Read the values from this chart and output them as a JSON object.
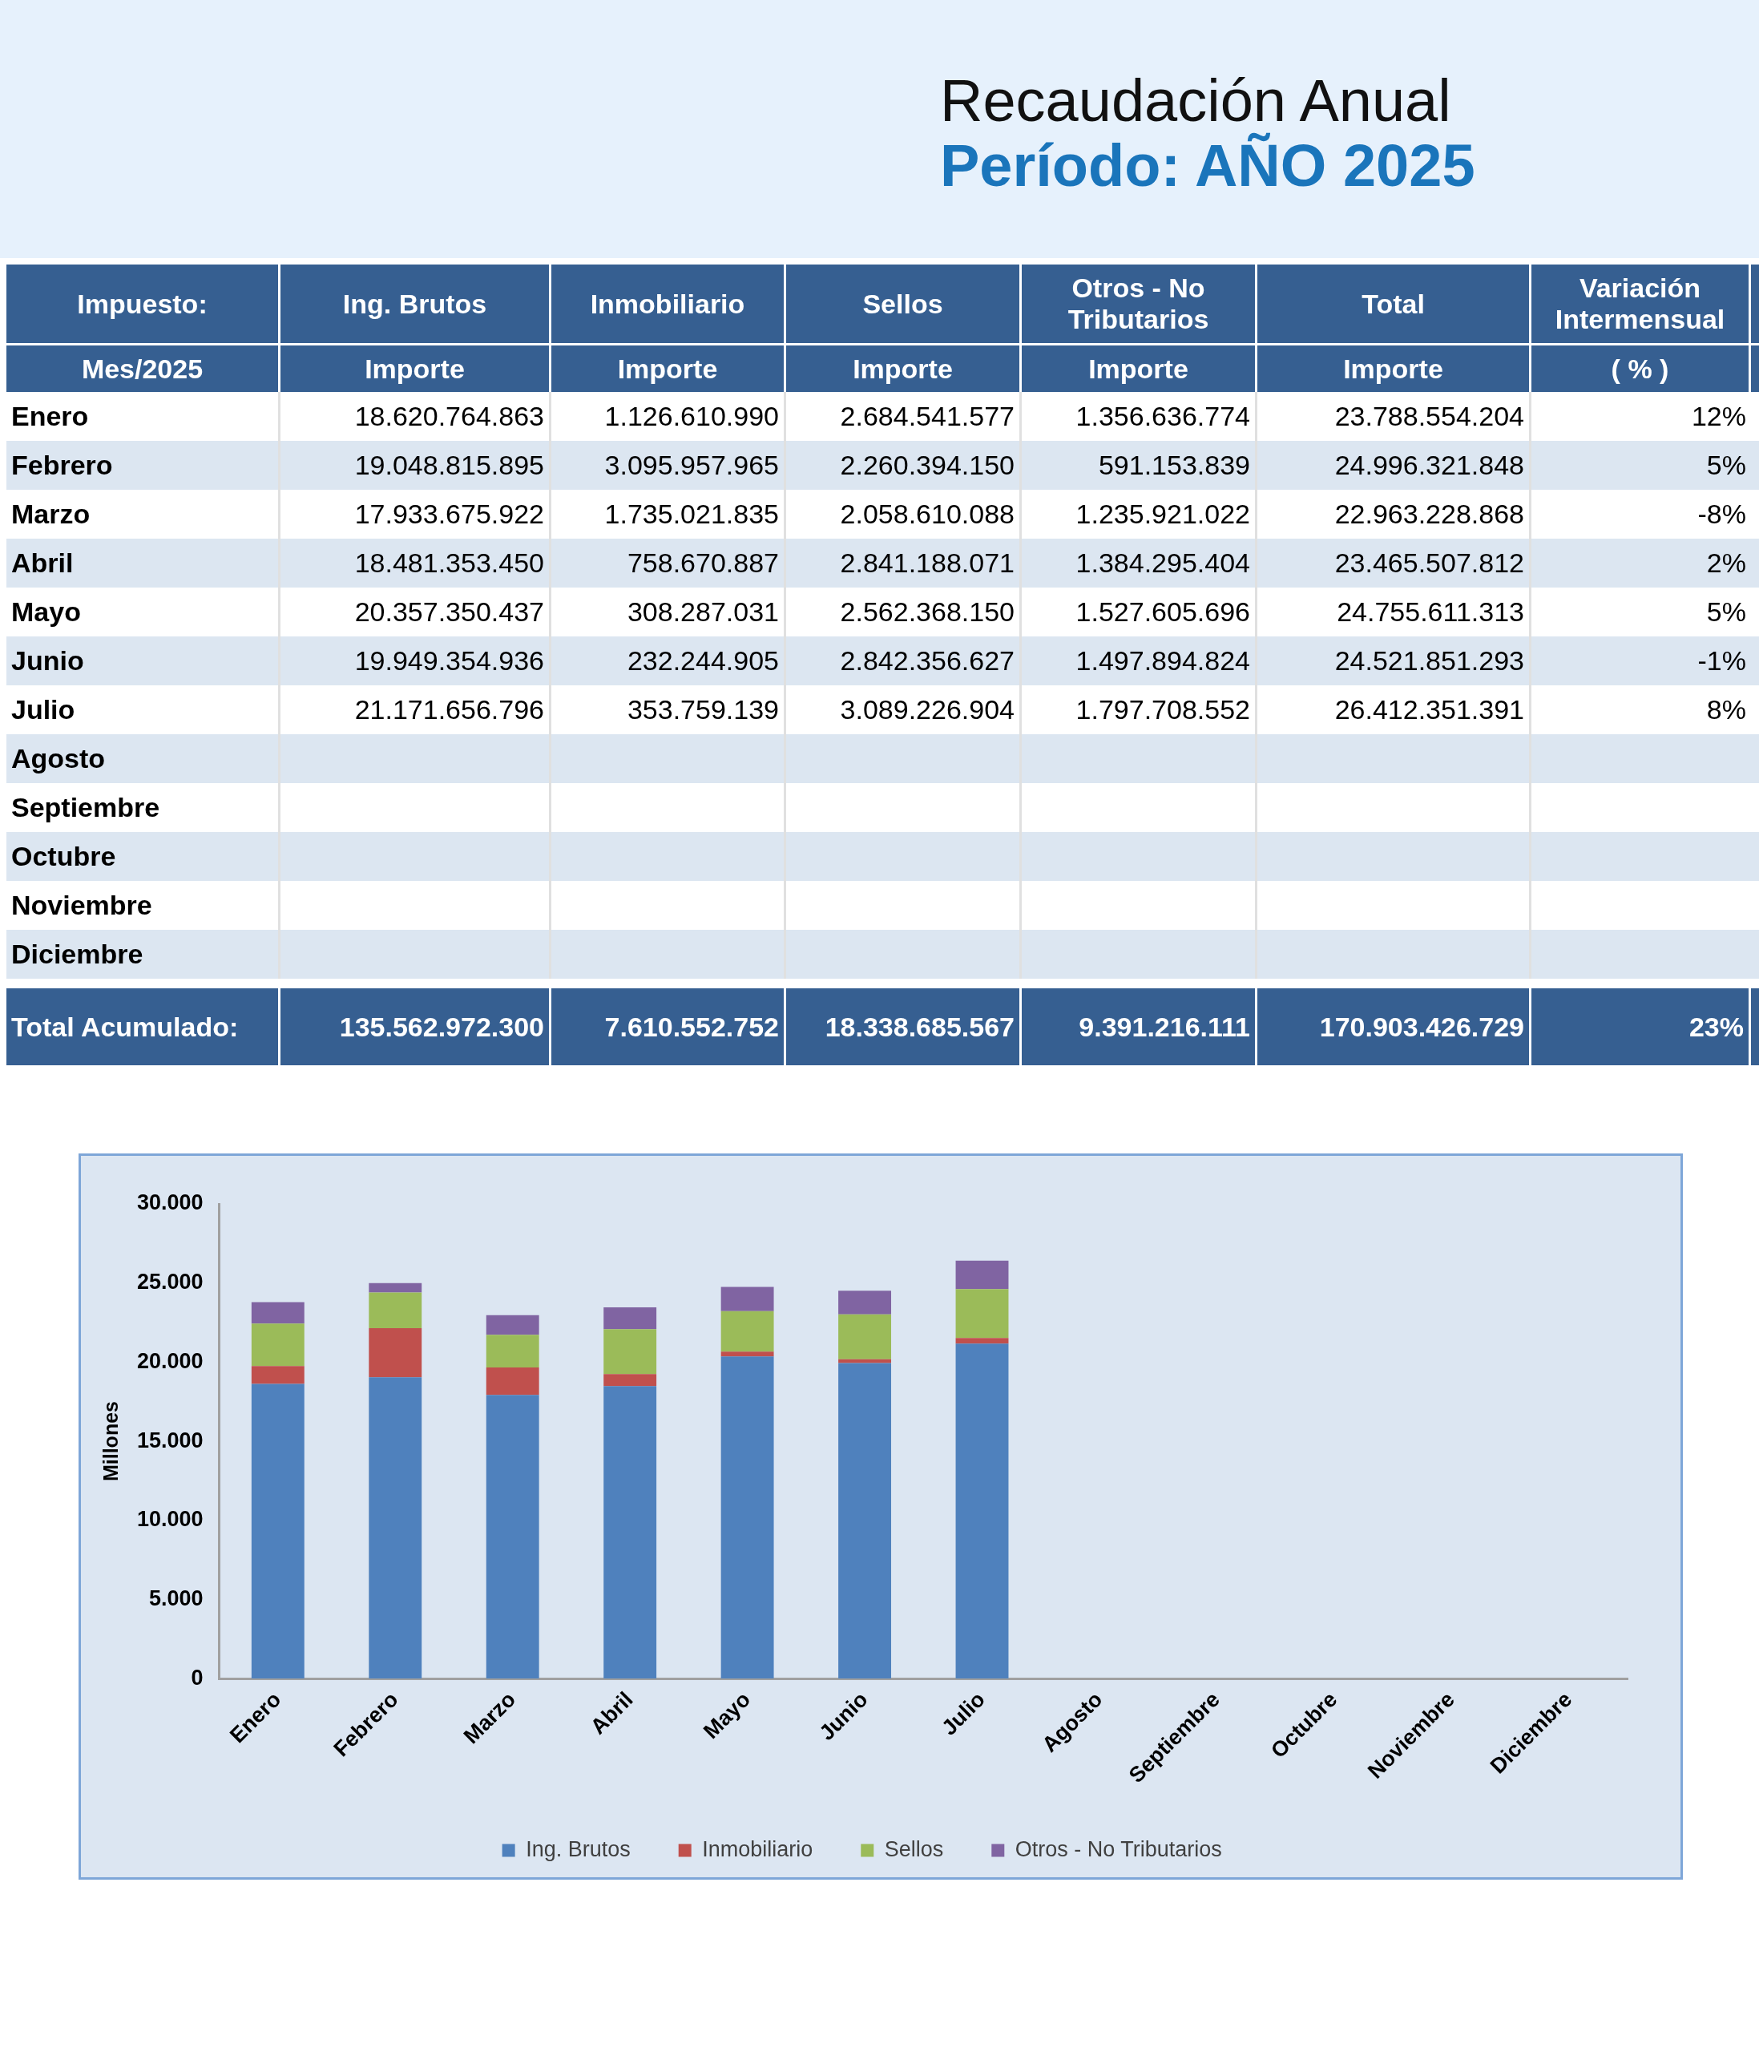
{
  "chart_data": [
    {
      "type": "other",
      "title": "Recaudación Anual",
      "subtitle": "Período: AÑO 2025",
      "annotations": [
        "Impuesto:",
        "Ing. Brutos",
        "Inmobiliario",
        "Sellos",
        "Otros - No Tributarios",
        "Total",
        "Variación Intermensual",
        "Mes/2025",
        "Importe",
        "Importe",
        "Importe",
        "Importe",
        "Importe",
        "( % )",
        "Enero",
        "18.620.764.863",
        "1.126.610.990",
        "2.684.541.577",
        "1.356.636.774",
        "23.788.554.204",
        "12%",
        "Febrero",
        "19.048.815.895",
        "3.095.957.965",
        "2.260.394.150",
        "591.153.839",
        "24.996.321.848",
        "5%",
        "Marzo",
        "17.933.675.922",
        "1.735.021.835",
        "2.058.610.088",
        "1.235.921.022",
        "22.963.228.868",
        "-8%",
        "Abril",
        "18.481.353.450",
        "758.670.887",
        "2.841.188.071",
        "1.384.295.404",
        "23.465.507.812",
        "2%",
        "Mayo",
        "20.357.350.437",
        "308.287.031",
        "2.562.368.150",
        "1.527.605.696",
        "24.755.611.313",
        "5%",
        "Junio",
        "19.949.354.936",
        "232.244.905",
        "2.842.356.627",
        "1.497.894.824",
        "24.521.851.293",
        "-1%",
        "Julio",
        "21.171.656.796",
        "353.759.139",
        "3.089.226.904",
        "1.797.708.552",
        "26.412.351.391",
        "8%",
        "Agosto",
        null,
        null,
        null,
        null,
        null,
        null,
        "Septiembre",
        null,
        null,
        null,
        null,
        null,
        null,
        "Octubre",
        null,
        null,
        null,
        null,
        null,
        null,
        "Noviembre",
        null,
        null,
        null,
        null,
        null,
        null,
        "Diciembre",
        null,
        null,
        null,
        null,
        null,
        null,
        "Total Acumulado:",
        "135.562.972.300",
        "7.610.552.752",
        "18.338.685.567",
        "9.391.216.111",
        "170.903.426.729",
        "23%"
      ]
    },
    {
      "type": "bar",
      "ylabel": "Millones",
      "categories": [
        "Enero",
        "Febrero",
        "Marzo",
        "Abril",
        "Mayo",
        "Junio",
        "Julio",
        "Agosto",
        "Septiembre",
        "Octubre",
        "Noviembre",
        "Diciembre"
      ],
      "series": [
        {
          "name": "Ing. Brutos",
          "color": "#4f81bd",
          "values": [
            18621,
            19049,
            17934,
            18481,
            20357,
            19949,
            21172,
            null,
            null,
            null,
            null,
            null
          ]
        },
        {
          "name": "Inmobiliario",
          "color": "#c0504d",
          "values": [
            1127,
            3096,
            1735,
            759,
            308,
            232,
            354,
            null,
            null,
            null,
            null,
            null
          ]
        },
        {
          "name": "Sellos",
          "color": "#9bbb59",
          "values": [
            2685,
            2260,
            2059,
            2841,
            2562,
            2842,
            3089,
            null,
            null,
            null,
            null,
            null
          ]
        },
        {
          "name": "Otros - No Tributarios",
          "color": "#8064a2",
          "values": [
            1357,
            591,
            1236,
            1384,
            1528,
            1498,
            1798,
            null,
            null,
            null,
            null,
            null
          ]
        }
      ],
      "stacked": true,
      "ylim": [
        0,
        30000
      ],
      "yticks": [
        {
          "value": 0,
          "label": "0"
        },
        {
          "value": 5000,
          "label": "5.000"
        },
        {
          "value": 10000,
          "label": "10.000"
        },
        {
          "value": 15000,
          "label": "15.000"
        },
        {
          "value": 20000,
          "label": "20.000"
        },
        {
          "value": 25000,
          "label": "25.000"
        },
        {
          "value": 30000,
          "label": "30.000"
        }
      ],
      "grid": false,
      "legend": "bottom"
    }
  ]
}
